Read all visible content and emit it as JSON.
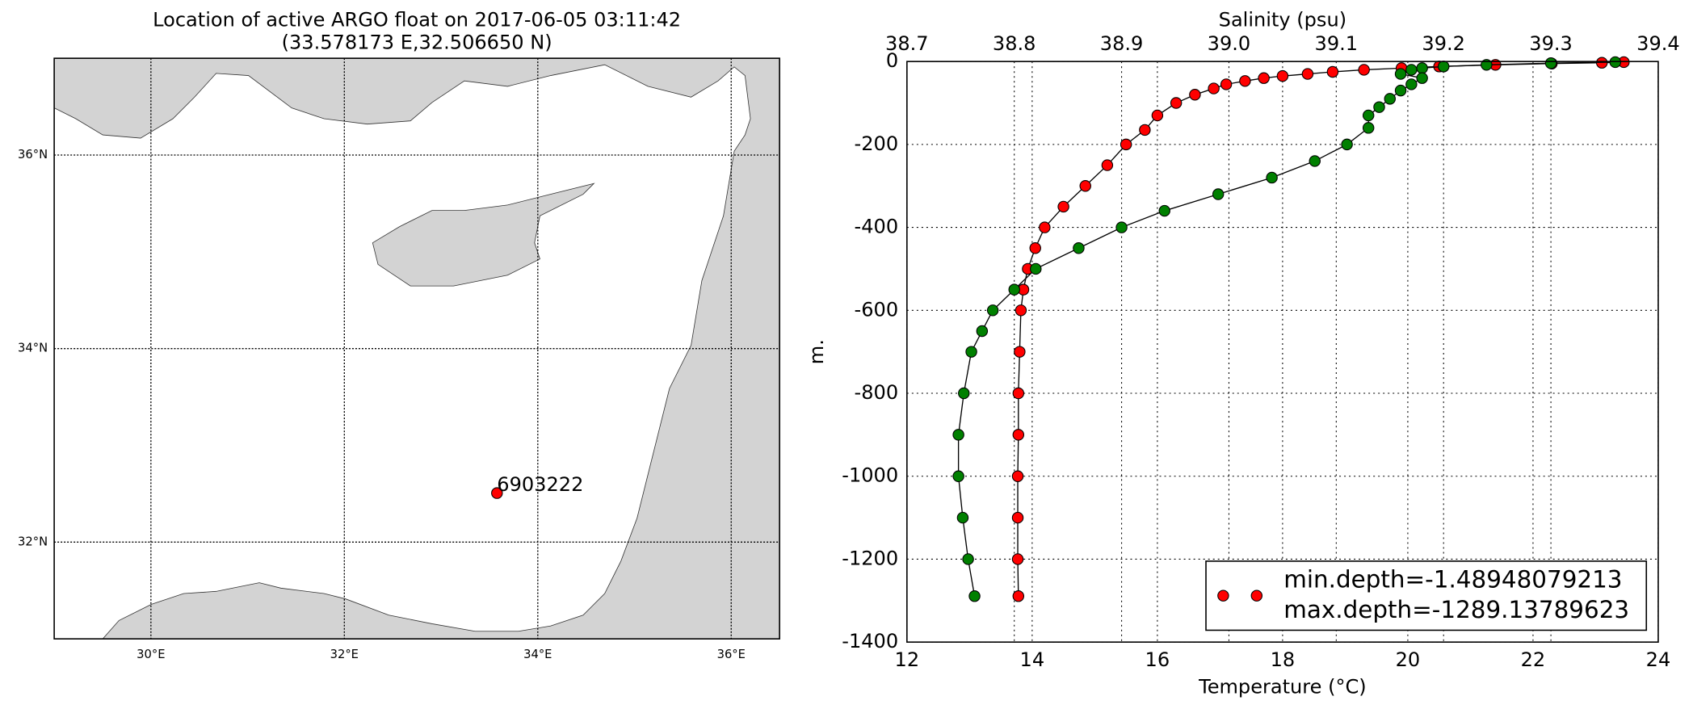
{
  "chart_data": [
    {
      "type": "map",
      "title": "Location of active ARGO float on 2017-06-05 03:11:42",
      "subtitle": "(33.578173 E,32.506650 N)",
      "xlim": [
        29,
        36.5
      ],
      "ylim": [
        31,
        37
      ],
      "xticks": [
        {
          "value": 30,
          "label": "30°E"
        },
        {
          "value": 32,
          "label": "32°E"
        },
        {
          "value": 34,
          "label": "34°E"
        },
        {
          "value": 36,
          "label": "36°E"
        }
      ],
      "yticks": [
        {
          "value": 32,
          "label": "32°N"
        },
        {
          "value": 34,
          "label": "34°N"
        },
        {
          "value": 36,
          "label": "36°N"
        }
      ],
      "grid": true,
      "points": [
        {
          "label": "6903222",
          "x": 33.578173,
          "y": 32.50665,
          "color": "red"
        }
      ],
      "label_color": "#0000cc"
    },
    {
      "type": "profile",
      "xlabel": "Temperature (°C)",
      "x2label": "Salinity (psu)",
      "ylabel": "m.",
      "xlim": [
        12,
        24
      ],
      "x2lim": [
        38.7,
        39.4
      ],
      "ylim": [
        -1400,
        0
      ],
      "xticks": [
        12,
        14,
        16,
        18,
        20,
        22,
        24
      ],
      "x2ticks": [
        38.7,
        38.8,
        38.9,
        {
          "value": 39,
          "label": "39.0"
        },
        39.1,
        39.2,
        39.3,
        39.4
      ],
      "yticks": [
        0,
        -200,
        -400,
        -600,
        -800,
        -1000,
        -1200,
        -1400
      ],
      "xtick_color": "red",
      "x2tick_color": "green",
      "grid": true,
      "line_color": "black",
      "series": [
        {
          "color": "red",
          "axis": "x",
          "y": [
            -1.48948079213,
            -3,
            -5,
            -8,
            -12,
            -16,
            -20,
            -25,
            -30,
            -35,
            -40,
            -47,
            -55,
            -65,
            -80,
            -100,
            -130,
            -165,
            -200,
            -250,
            -300,
            -350,
            -400,
            -450,
            -500,
            -550,
            -600,
            -700,
            -800,
            -900,
            -1000,
            -1100,
            -1200,
            -1289.13789623
          ],
          "x": [
            23.45,
            23.1,
            22.3,
            21.4,
            20.5,
            19.9,
            19.3,
            18.8,
            18.4,
            18.0,
            17.7,
            17.4,
            17.1,
            16.9,
            16.6,
            16.3,
            16.0,
            15.8,
            15.5,
            15.2,
            14.85,
            14.5,
            14.2,
            14.05,
            13.93,
            13.86,
            13.82,
            13.8,
            13.78,
            13.78,
            13.77,
            13.77,
            13.77,
            13.78
          ]
        },
        {
          "color": "green",
          "axis": "x2",
          "y": [
            -1.48948079213,
            -4,
            -8,
            -12,
            -16,
            -20,
            -30,
            -40,
            -55,
            -70,
            -90,
            -110,
            -130,
            -160,
            -200,
            -240,
            -280,
            -320,
            -360,
            -400,
            -450,
            -500,
            -550,
            -600,
            -650,
            -700,
            -800,
            -900,
            -1000,
            -1100,
            -1200,
            -1289.13789623
          ],
          "x": [
            39.36,
            39.3,
            39.24,
            39.2,
            39.18,
            39.17,
            39.16,
            39.18,
            39.17,
            39.16,
            39.15,
            39.14,
            39.13,
            39.13,
            39.11,
            39.08,
            39.04,
            38.99,
            38.94,
            38.9,
            38.86,
            38.82,
            38.8,
            38.78,
            38.77,
            38.76,
            38.753,
            38.748,
            38.748,
            38.752,
            38.757,
            38.763
          ]
        }
      ],
      "legend": {
        "labels": [
          "min.depth=-1.48948079213",
          "max.depth=-1289.13789623"
        ],
        "loc": "lower right",
        "color": "red"
      }
    }
  ]
}
